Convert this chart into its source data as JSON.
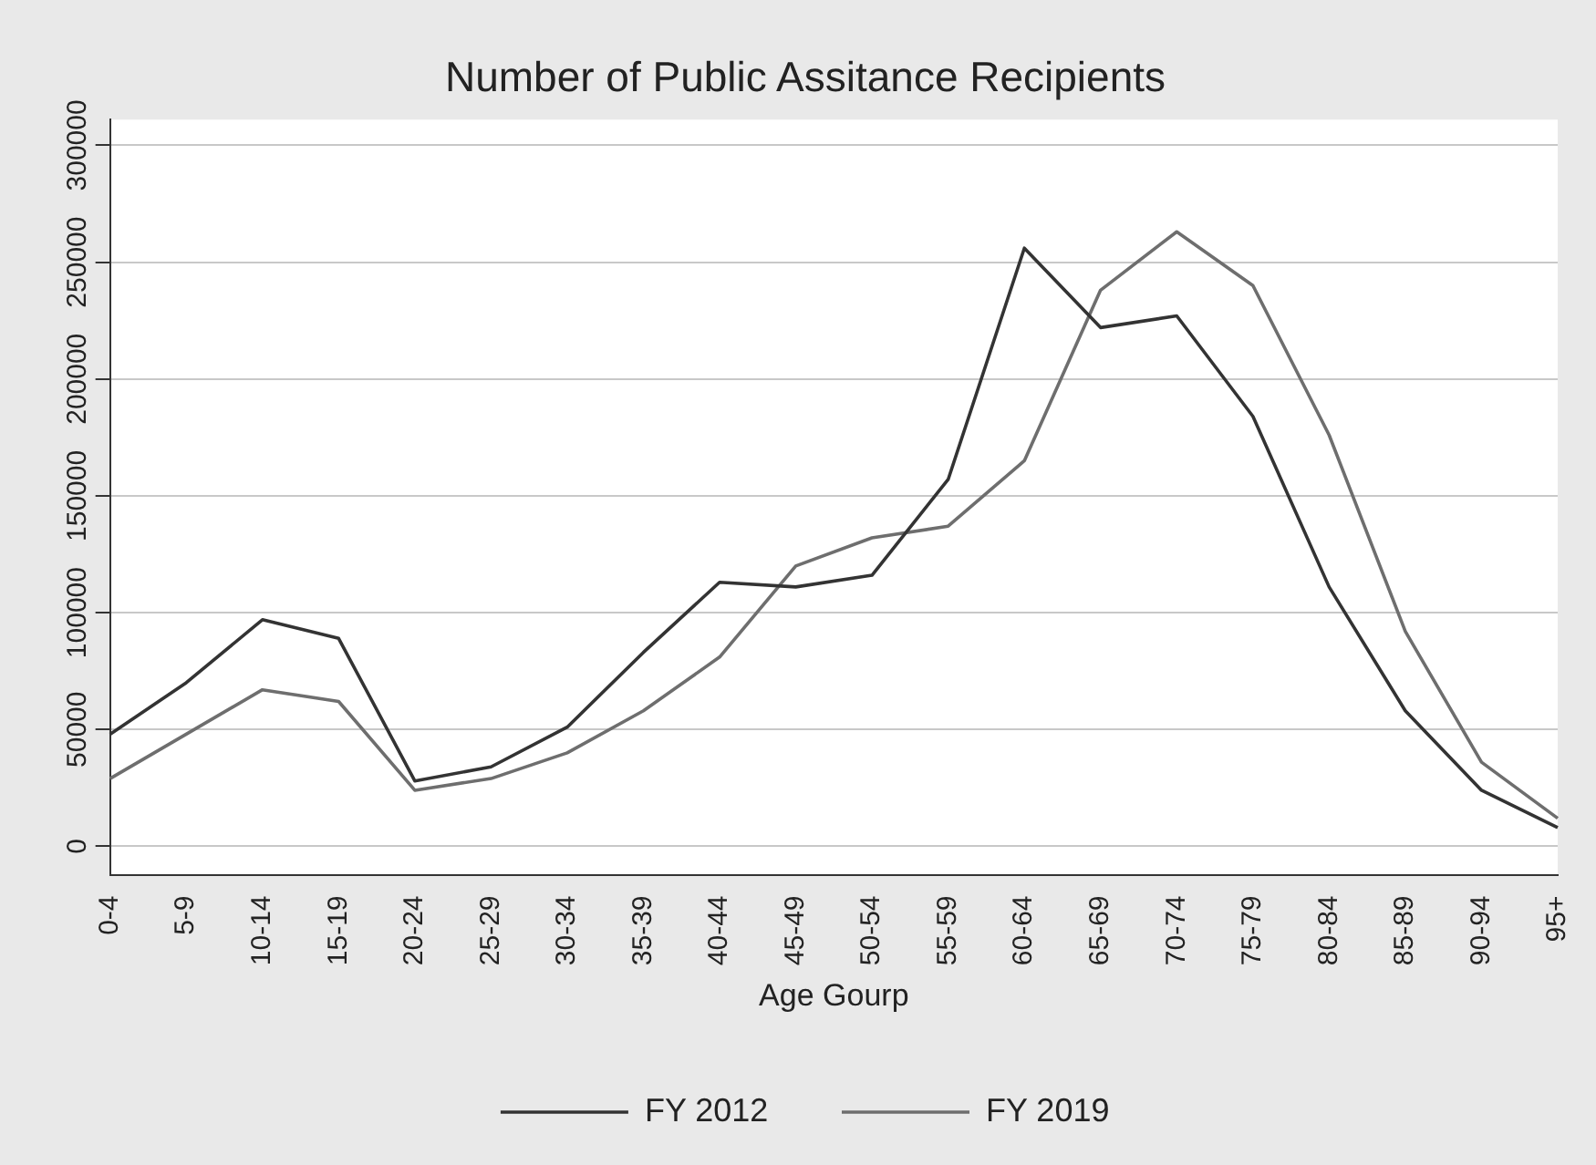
{
  "chart_data": {
    "type": "line",
    "title": "Number of Public Assitance Recipients",
    "xlabel": "Age Gourp",
    "categories": [
      "0-4",
      "5-9",
      "10-14",
      "15-19",
      "20-24",
      "25-29",
      "30-34",
      "35-39",
      "40-44",
      "45-49",
      "50-54",
      "55-59",
      "60-64",
      "65-69",
      "70-74",
      "75-79",
      "80-84",
      "85-89",
      "90-94",
      "95+"
    ],
    "series": [
      {
        "name": "FY 2012",
        "color": "#333333",
        "values": [
          48000,
          70000,
          97000,
          89000,
          28000,
          34000,
          51000,
          83000,
          113000,
          111000,
          116000,
          157000,
          256000,
          222000,
          227000,
          184000,
          111000,
          58000,
          24000,
          8000
        ]
      },
      {
        "name": "FY 2019",
        "color": "#6e6e6e",
        "values": [
          29000,
          48000,
          67000,
          62000,
          24000,
          29000,
          40000,
          58000,
          81000,
          120000,
          132000,
          137000,
          165000,
          238000,
          263000,
          240000,
          176000,
          92000,
          36000,
          12000
        ]
      }
    ],
    "ylim": [
      -12500,
      311000
    ],
    "yticks": [
      0,
      50000,
      100000,
      150000,
      200000,
      250000,
      300000
    ],
    "grid": "y",
    "legend": "bottom",
    "marker": "none",
    "line_style": "solid"
  }
}
